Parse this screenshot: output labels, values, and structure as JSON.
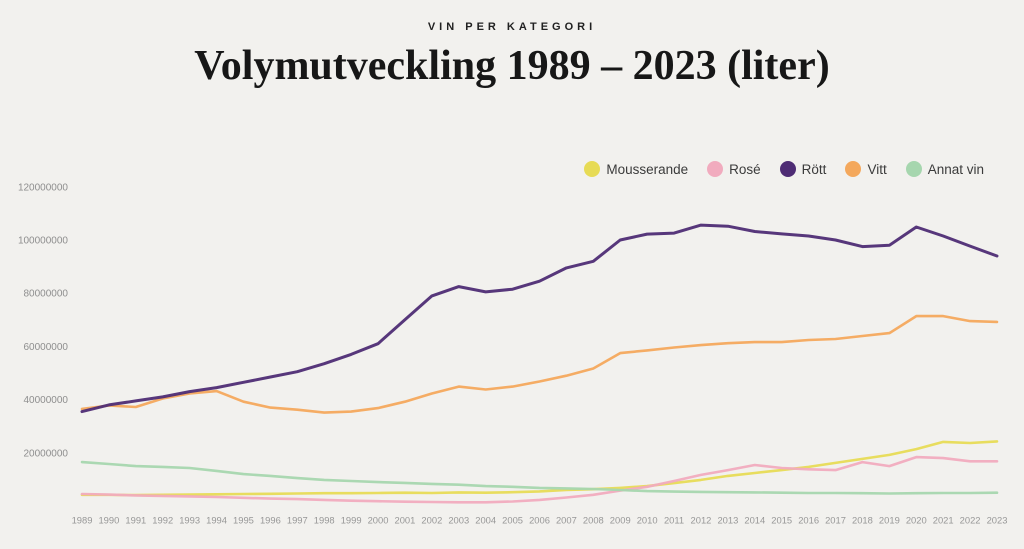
{
  "page": {
    "background": "#f2f1ee"
  },
  "header": {
    "eyebrow": "VIN PER KATEGORI",
    "title": "Volymutveckling 1989 – 2023 (liter)"
  },
  "colors": {
    "background": "#f2f1ee",
    "title_text": "#171717",
    "axis_tick_text": "#8e8e8e",
    "legend_text": "#3b3b3b"
  },
  "chart_data": {
    "type": "line",
    "title": "Volymutveckling 1989 – 2023 (liter)",
    "subtitle": "VIN PER KATEGORI",
    "unit": "liter",
    "grid": false,
    "legend_position": "top-right",
    "xlabel": "",
    "ylabel": "",
    "ylim": [
      0,
      125000000
    ],
    "yticks": [
      20000000,
      40000000,
      60000000,
      80000000,
      100000000,
      120000000
    ],
    "x": [
      1989,
      1990,
      1991,
      1992,
      1993,
      1994,
      1995,
      1996,
      1997,
      1998,
      1999,
      2000,
      2001,
      2002,
      2003,
      2004,
      2005,
      2006,
      2007,
      2008,
      2009,
      2010,
      2011,
      2012,
      2013,
      2014,
      2015,
      2016,
      2017,
      2018,
      2019,
      2020,
      2021,
      2022,
      2023
    ],
    "series": [
      {
        "name": "Mousserande",
        "color": "#e7db55",
        "values": [
          4200000,
          4200000,
          4100000,
          4200000,
          4300000,
          4400000,
          4500000,
          4600000,
          4700000,
          4800000,
          4800000,
          4900000,
          5000000,
          4900000,
          5100000,
          5000000,
          5200000,
          5500000,
          6000000,
          6300000,
          6800000,
          7500000,
          8600000,
          9800000,
          11300000,
          12400000,
          13500000,
          14700000,
          16200000,
          17700000,
          19200000,
          21400000,
          24100000,
          23700000,
          24300000
        ]
      },
      {
        "name": "Rosé",
        "color": "#f1abbe",
        "values": [
          4500000,
          4300000,
          4000000,
          3800000,
          3600000,
          3400000,
          3100000,
          2800000,
          2600000,
          2300000,
          2000000,
          1800000,
          1600000,
          1500000,
          1400000,
          1400000,
          1700000,
          2300000,
          3200000,
          4200000,
          5800000,
          7200000,
          9400000,
          11700000,
          13500000,
          15400000,
          14300000,
          13800000,
          13500000,
          16500000,
          15000000,
          18400000,
          18000000,
          16800000,
          16800000
        ]
      },
      {
        "name": "Rött",
        "color": "#4e2c74",
        "values": [
          35500000,
          38000000,
          39500000,
          41000000,
          43000000,
          44500000,
          46500000,
          48500000,
          50500000,
          53500000,
          57000000,
          61000000,
          70000000,
          79000000,
          82500000,
          80500000,
          81500000,
          84500000,
          89500000,
          92000000,
          100000000,
          102200000,
          102600000,
          105600000,
          105200000,
          103200000,
          102300000,
          101500000,
          100000000,
          97500000,
          98000000,
          104900000,
          101500000,
          97700000,
          94000000
        ]
      },
      {
        "name": "Vitt",
        "color": "#f4a85c",
        "values": [
          36500000,
          37800000,
          37200000,
          40400000,
          42300000,
          43200000,
          39200000,
          37000000,
          36200000,
          35100000,
          35500000,
          36800000,
          39200000,
          42300000,
          44900000,
          43800000,
          44900000,
          46800000,
          49000000,
          51700000,
          57500000,
          58500000,
          59600000,
          60500000,
          61200000,
          61600000,
          61600000,
          62400000,
          62800000,
          63900000,
          65000000,
          71400000,
          71400000,
          69500000,
          69200000
        ]
      },
      {
        "name": "Annat vin",
        "color": "#a6d6ae",
        "values": [
          16500000,
          15800000,
          15000000,
          14700000,
          14300000,
          13200000,
          12000000,
          11300000,
          10500000,
          9800000,
          9400000,
          9000000,
          8700000,
          8300000,
          8000000,
          7500000,
          7200000,
          6800000,
          6600000,
          6400000,
          6000000,
          5600000,
          5400000,
          5300000,
          5200000,
          5100000,
          5000000,
          4900000,
          4900000,
          4800000,
          4700000,
          4800000,
          4900000,
          4900000,
          5000000
        ]
      }
    ]
  }
}
